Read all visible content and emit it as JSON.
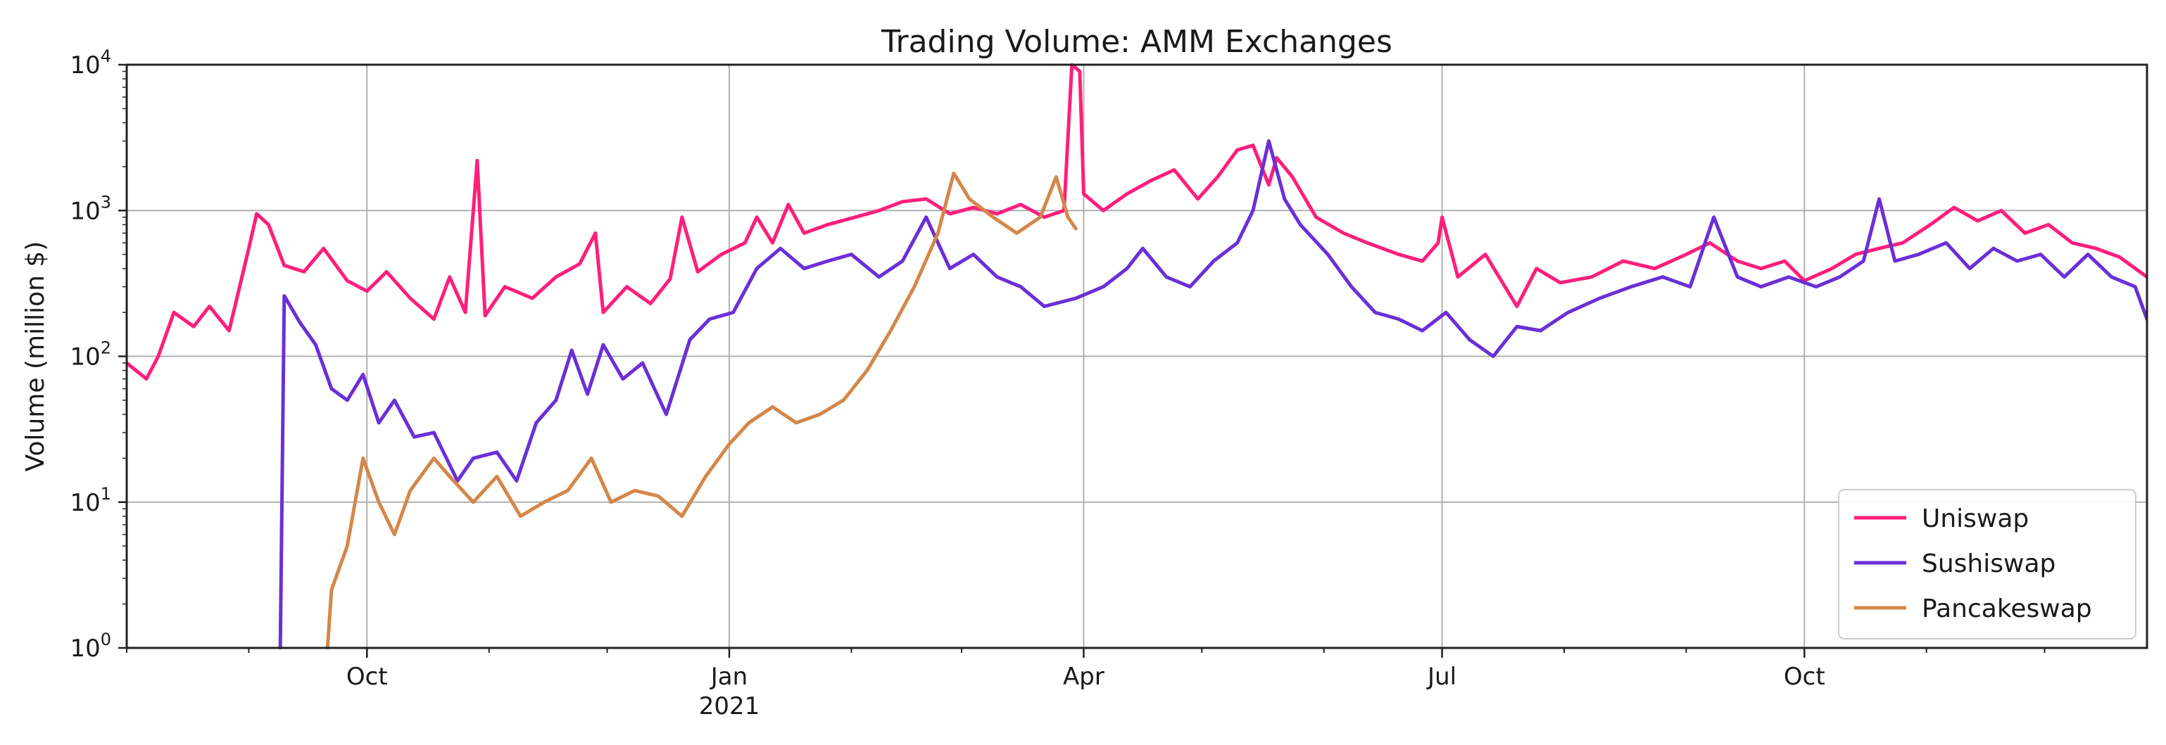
{
  "chart_data": {
    "type": "line",
    "title": "Trading Volume: AMM Exchanges",
    "ylabel": "Volume (million $)",
    "xlabel": "",
    "yscale": "log",
    "ylim": [
      1,
      10000
    ],
    "xlim": [
      "2020-08-01",
      "2021-12-27"
    ],
    "grid": true,
    "legend_position": "lower-right",
    "x_ticks": [
      {
        "date": "2020-10-01",
        "label": "Oct",
        "sublabel": ""
      },
      {
        "date": "2021-01-01",
        "label": "Jan",
        "sublabel": "2021"
      },
      {
        "date": "2021-04-01",
        "label": "Apr",
        "sublabel": ""
      },
      {
        "date": "2021-07-01",
        "label": "Jul",
        "sublabel": ""
      },
      {
        "date": "2021-10-01",
        "label": "Oct",
        "sublabel": ""
      }
    ],
    "y_ticks": [
      {
        "value": 1,
        "base": "10",
        "exp": "0"
      },
      {
        "value": 10,
        "base": "10",
        "exp": "1"
      },
      {
        "value": 100,
        "base": "10",
        "exp": "2"
      },
      {
        "value": 1000,
        "base": "10",
        "exp": "3"
      },
      {
        "value": 10000,
        "base": "10",
        "exp": "4"
      }
    ],
    "series": [
      {
        "name": "Uniswap",
        "color": "#ff1f7a",
        "points": [
          [
            "2020-08-01",
            90
          ],
          [
            "2020-08-06",
            70
          ],
          [
            "2020-08-09",
            100
          ],
          [
            "2020-08-13",
            200
          ],
          [
            "2020-08-18",
            160
          ],
          [
            "2020-08-22",
            220
          ],
          [
            "2020-08-27",
            150
          ],
          [
            "2020-09-01",
            550
          ],
          [
            "2020-09-03",
            950
          ],
          [
            "2020-09-06",
            800
          ],
          [
            "2020-09-10",
            420
          ],
          [
            "2020-09-15",
            380
          ],
          [
            "2020-09-20",
            550
          ],
          [
            "2020-09-26",
            330
          ],
          [
            "2020-10-01",
            280
          ],
          [
            "2020-10-06",
            380
          ],
          [
            "2020-10-12",
            250
          ],
          [
            "2020-10-18",
            180
          ],
          [
            "2020-10-22",
            350
          ],
          [
            "2020-10-26",
            200
          ],
          [
            "2020-10-29",
            2200
          ],
          [
            "2020-10-31",
            190
          ],
          [
            "2020-11-05",
            300
          ],
          [
            "2020-11-12",
            250
          ],
          [
            "2020-11-18",
            350
          ],
          [
            "2020-11-24",
            430
          ],
          [
            "2020-11-28",
            700
          ],
          [
            "2020-11-30",
            200
          ],
          [
            "2020-12-06",
            300
          ],
          [
            "2020-12-12",
            230
          ],
          [
            "2020-12-17",
            340
          ],
          [
            "2020-12-20",
            900
          ],
          [
            "2020-12-24",
            380
          ],
          [
            "2020-12-30",
            500
          ],
          [
            "2021-01-05",
            600
          ],
          [
            "2021-01-08",
            900
          ],
          [
            "2021-01-12",
            600
          ],
          [
            "2021-01-16",
            1100
          ],
          [
            "2021-01-20",
            700
          ],
          [
            "2021-01-26",
            800
          ],
          [
            "2021-02-02",
            900
          ],
          [
            "2021-02-08",
            1000
          ],
          [
            "2021-02-14",
            1150
          ],
          [
            "2021-02-20",
            1200
          ],
          [
            "2021-02-26",
            950
          ],
          [
            "2021-03-04",
            1050
          ],
          [
            "2021-03-10",
            950
          ],
          [
            "2021-03-16",
            1100
          ],
          [
            "2021-03-22",
            900
          ],
          [
            "2021-03-27",
            1000
          ],
          [
            "2021-03-29",
            10000
          ],
          [
            "2021-03-31",
            9000
          ],
          [
            "2021-04-01",
            1300
          ],
          [
            "2021-04-06",
            1000
          ],
          [
            "2021-04-12",
            1300
          ],
          [
            "2021-04-18",
            1600
          ],
          [
            "2021-04-24",
            1900
          ],
          [
            "2021-04-30",
            1200
          ],
          [
            "2021-05-05",
            1700
          ],
          [
            "2021-05-10",
            2600
          ],
          [
            "2021-05-14",
            2800
          ],
          [
            "2021-05-18",
            1500
          ],
          [
            "2021-05-20",
            2300
          ],
          [
            "2021-05-24",
            1700
          ],
          [
            "2021-05-30",
            900
          ],
          [
            "2021-06-06",
            700
          ],
          [
            "2021-06-12",
            600
          ],
          [
            "2021-06-20",
            500
          ],
          [
            "2021-06-26",
            450
          ],
          [
            "2021-06-30",
            600
          ],
          [
            "2021-07-01",
            900
          ],
          [
            "2021-07-05",
            350
          ],
          [
            "2021-07-12",
            500
          ],
          [
            "2021-07-20",
            220
          ],
          [
            "2021-07-25",
            400
          ],
          [
            "2021-07-31",
            320
          ],
          [
            "2021-08-08",
            350
          ],
          [
            "2021-08-16",
            450
          ],
          [
            "2021-08-24",
            400
          ],
          [
            "2021-09-01",
            500
          ],
          [
            "2021-09-07",
            600
          ],
          [
            "2021-09-14",
            450
          ],
          [
            "2021-09-20",
            400
          ],
          [
            "2021-09-26",
            450
          ],
          [
            "2021-10-01",
            330
          ],
          [
            "2021-10-08",
            400
          ],
          [
            "2021-10-14",
            500
          ],
          [
            "2021-10-20",
            550
          ],
          [
            "2021-10-26",
            600
          ],
          [
            "2021-11-02",
            800
          ],
          [
            "2021-11-08",
            1050
          ],
          [
            "2021-11-14",
            850
          ],
          [
            "2021-11-20",
            1000
          ],
          [
            "2021-11-26",
            700
          ],
          [
            "2021-12-02",
            800
          ],
          [
            "2021-12-08",
            600
          ],
          [
            "2021-12-14",
            550
          ],
          [
            "2021-12-20",
            480
          ],
          [
            "2021-12-27",
            350
          ]
        ]
      },
      {
        "name": "Sushiswap",
        "color": "#6b2fd6",
        "points": [
          [
            "2020-09-09",
            1
          ],
          [
            "2020-09-10",
            260
          ],
          [
            "2020-09-14",
            170
          ],
          [
            "2020-09-18",
            120
          ],
          [
            "2020-09-22",
            60
          ],
          [
            "2020-09-26",
            50
          ],
          [
            "2020-09-30",
            75
          ],
          [
            "2020-10-04",
            35
          ],
          [
            "2020-10-08",
            50
          ],
          [
            "2020-10-13",
            28
          ],
          [
            "2020-10-18",
            30
          ],
          [
            "2020-10-24",
            14
          ],
          [
            "2020-10-28",
            20
          ],
          [
            "2020-11-03",
            22
          ],
          [
            "2020-11-08",
            14
          ],
          [
            "2020-11-13",
            35
          ],
          [
            "2020-11-18",
            50
          ],
          [
            "2020-11-22",
            110
          ],
          [
            "2020-11-26",
            55
          ],
          [
            "2020-11-30",
            120
          ],
          [
            "2020-12-05",
            70
          ],
          [
            "2020-12-10",
            90
          ],
          [
            "2020-12-16",
            40
          ],
          [
            "2020-12-22",
            130
          ],
          [
            "2020-12-27",
            180
          ],
          [
            "2021-01-02",
            200
          ],
          [
            "2021-01-08",
            400
          ],
          [
            "2021-01-14",
            550
          ],
          [
            "2021-01-20",
            400
          ],
          [
            "2021-01-26",
            450
          ],
          [
            "2021-02-01",
            500
          ],
          [
            "2021-02-08",
            350
          ],
          [
            "2021-02-14",
            450
          ],
          [
            "2021-02-20",
            900
          ],
          [
            "2021-02-26",
            400
          ],
          [
            "2021-03-04",
            500
          ],
          [
            "2021-03-10",
            350
          ],
          [
            "2021-03-16",
            300
          ],
          [
            "2021-03-22",
            220
          ],
          [
            "2021-03-30",
            250
          ],
          [
            "2021-04-06",
            300
          ],
          [
            "2021-04-12",
            400
          ],
          [
            "2021-04-16",
            550
          ],
          [
            "2021-04-22",
            350
          ],
          [
            "2021-04-28",
            300
          ],
          [
            "2021-05-04",
            450
          ],
          [
            "2021-05-10",
            600
          ],
          [
            "2021-05-14",
            1000
          ],
          [
            "2021-05-18",
            3000
          ],
          [
            "2021-05-22",
            1200
          ],
          [
            "2021-05-26",
            800
          ],
          [
            "2021-06-02",
            500
          ],
          [
            "2021-06-08",
            300
          ],
          [
            "2021-06-14",
            200
          ],
          [
            "2021-06-20",
            180
          ],
          [
            "2021-06-26",
            150
          ],
          [
            "2021-07-02",
            200
          ],
          [
            "2021-07-08",
            130
          ],
          [
            "2021-07-14",
            100
          ],
          [
            "2021-07-20",
            160
          ],
          [
            "2021-07-26",
            150
          ],
          [
            "2021-08-02",
            200
          ],
          [
            "2021-08-10",
            250
          ],
          [
            "2021-08-18",
            300
          ],
          [
            "2021-08-26",
            350
          ],
          [
            "2021-09-02",
            300
          ],
          [
            "2021-09-08",
            900
          ],
          [
            "2021-09-14",
            350
          ],
          [
            "2021-09-20",
            300
          ],
          [
            "2021-09-27",
            350
          ],
          [
            "2021-10-04",
            300
          ],
          [
            "2021-10-10",
            350
          ],
          [
            "2021-10-16",
            450
          ],
          [
            "2021-10-20",
            1200
          ],
          [
            "2021-10-24",
            450
          ],
          [
            "2021-10-30",
            500
          ],
          [
            "2021-11-06",
            600
          ],
          [
            "2021-11-12",
            400
          ],
          [
            "2021-11-18",
            550
          ],
          [
            "2021-11-24",
            450
          ],
          [
            "2021-11-30",
            500
          ],
          [
            "2021-12-06",
            350
          ],
          [
            "2021-12-12",
            500
          ],
          [
            "2021-12-18",
            350
          ],
          [
            "2021-12-24",
            300
          ],
          [
            "2021-12-27",
            180
          ]
        ]
      },
      {
        "name": "Pancakeswap",
        "color": "#d4874a",
        "points": [
          [
            "2020-09-21",
            1
          ],
          [
            "2020-09-22",
            2.5
          ],
          [
            "2020-09-26",
            5
          ],
          [
            "2020-09-30",
            20
          ],
          [
            "2020-10-04",
            10
          ],
          [
            "2020-10-08",
            6
          ],
          [
            "2020-10-12",
            12
          ],
          [
            "2020-10-18",
            20
          ],
          [
            "2020-10-22",
            15
          ],
          [
            "2020-10-28",
            10
          ],
          [
            "2020-11-03",
            15
          ],
          [
            "2020-11-09",
            8
          ],
          [
            "2020-11-15",
            10
          ],
          [
            "2020-11-21",
            12
          ],
          [
            "2020-11-27",
            20
          ],
          [
            "2020-12-02",
            10
          ],
          [
            "2020-12-08",
            12
          ],
          [
            "2020-12-14",
            11
          ],
          [
            "2020-12-20",
            8
          ],
          [
            "2020-12-26",
            15
          ],
          [
            "2021-01-01",
            25
          ],
          [
            "2021-01-06",
            35
          ],
          [
            "2021-01-12",
            45
          ],
          [
            "2021-01-18",
            35
          ],
          [
            "2021-01-24",
            40
          ],
          [
            "2021-01-30",
            50
          ],
          [
            "2021-02-05",
            80
          ],
          [
            "2021-02-11",
            150
          ],
          [
            "2021-02-17",
            300
          ],
          [
            "2021-02-23",
            700
          ],
          [
            "2021-02-27",
            1800
          ],
          [
            "2021-03-03",
            1200
          ],
          [
            "2021-03-09",
            900
          ],
          [
            "2021-03-15",
            700
          ],
          [
            "2021-03-21",
            900
          ],
          [
            "2021-03-25",
            1700
          ],
          [
            "2021-03-28",
            900
          ],
          [
            "2021-03-30",
            750
          ]
        ]
      }
    ]
  }
}
